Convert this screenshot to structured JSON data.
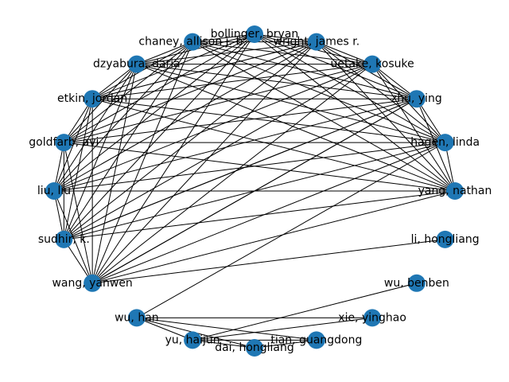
{
  "chart_data": {
    "type": "network",
    "node_color": "#1f77b4",
    "edge_color": "#000000",
    "nodes": [
      {
        "id": "bollinger",
        "label": "bollinger, bryan"
      },
      {
        "id": "wright",
        "label": "wright, james r."
      },
      {
        "id": "uetake",
        "label": "uetake, kosuke"
      },
      {
        "id": "zhu",
        "label": "zhu, ying"
      },
      {
        "id": "hagen",
        "label": "hagen, linda"
      },
      {
        "id": "yang",
        "label": "yang, nathan"
      },
      {
        "id": "lihong",
        "label": "li, hongliang"
      },
      {
        "id": "wubenben",
        "label": "wu, benben"
      },
      {
        "id": "xie",
        "label": "xie, yinghao"
      },
      {
        "id": "tian",
        "label": "tian, guangdong"
      },
      {
        "id": "dai",
        "label": "dai, hongliang"
      },
      {
        "id": "yu",
        "label": "yu, haijun"
      },
      {
        "id": "wuhan",
        "label": "wu, han"
      },
      {
        "id": "wang",
        "label": "wang, yanwen"
      },
      {
        "id": "sudhir",
        "label": "sudhir, k."
      },
      {
        "id": "liu",
        "label": "liu, liu"
      },
      {
        "id": "goldfarb",
        "label": "goldfarb, avi"
      },
      {
        "id": "etkin",
        "label": "etkin, jordan"
      },
      {
        "id": "dzyabura",
        "label": "dzyabura, daria"
      },
      {
        "id": "chaney",
        "label": "chaney, allison j. b."
      }
    ],
    "cluster": [
      "bollinger",
      "wright",
      "uetake",
      "zhu",
      "hagen",
      "yang",
      "wang",
      "sudhir",
      "liu",
      "goldfarb",
      "etkin",
      "dzyabura",
      "chaney"
    ],
    "extra_edges": [
      [
        "wang",
        "lihong"
      ],
      [
        "sudhir",
        "zhu"
      ],
      [
        "wang",
        "zhu"
      ],
      [
        "wuhan",
        "hagen"
      ],
      [
        "yu",
        "wubenben"
      ],
      [
        "wuhan",
        "xie"
      ],
      [
        "wuhan",
        "tian"
      ],
      [
        "wuhan",
        "dai"
      ],
      [
        "yu",
        "xie"
      ],
      [
        "yu",
        "tian"
      ],
      [
        "yu",
        "dai"
      ],
      [
        "dai",
        "tian"
      ],
      [
        "wuhan",
        "yu"
      ]
    ]
  }
}
